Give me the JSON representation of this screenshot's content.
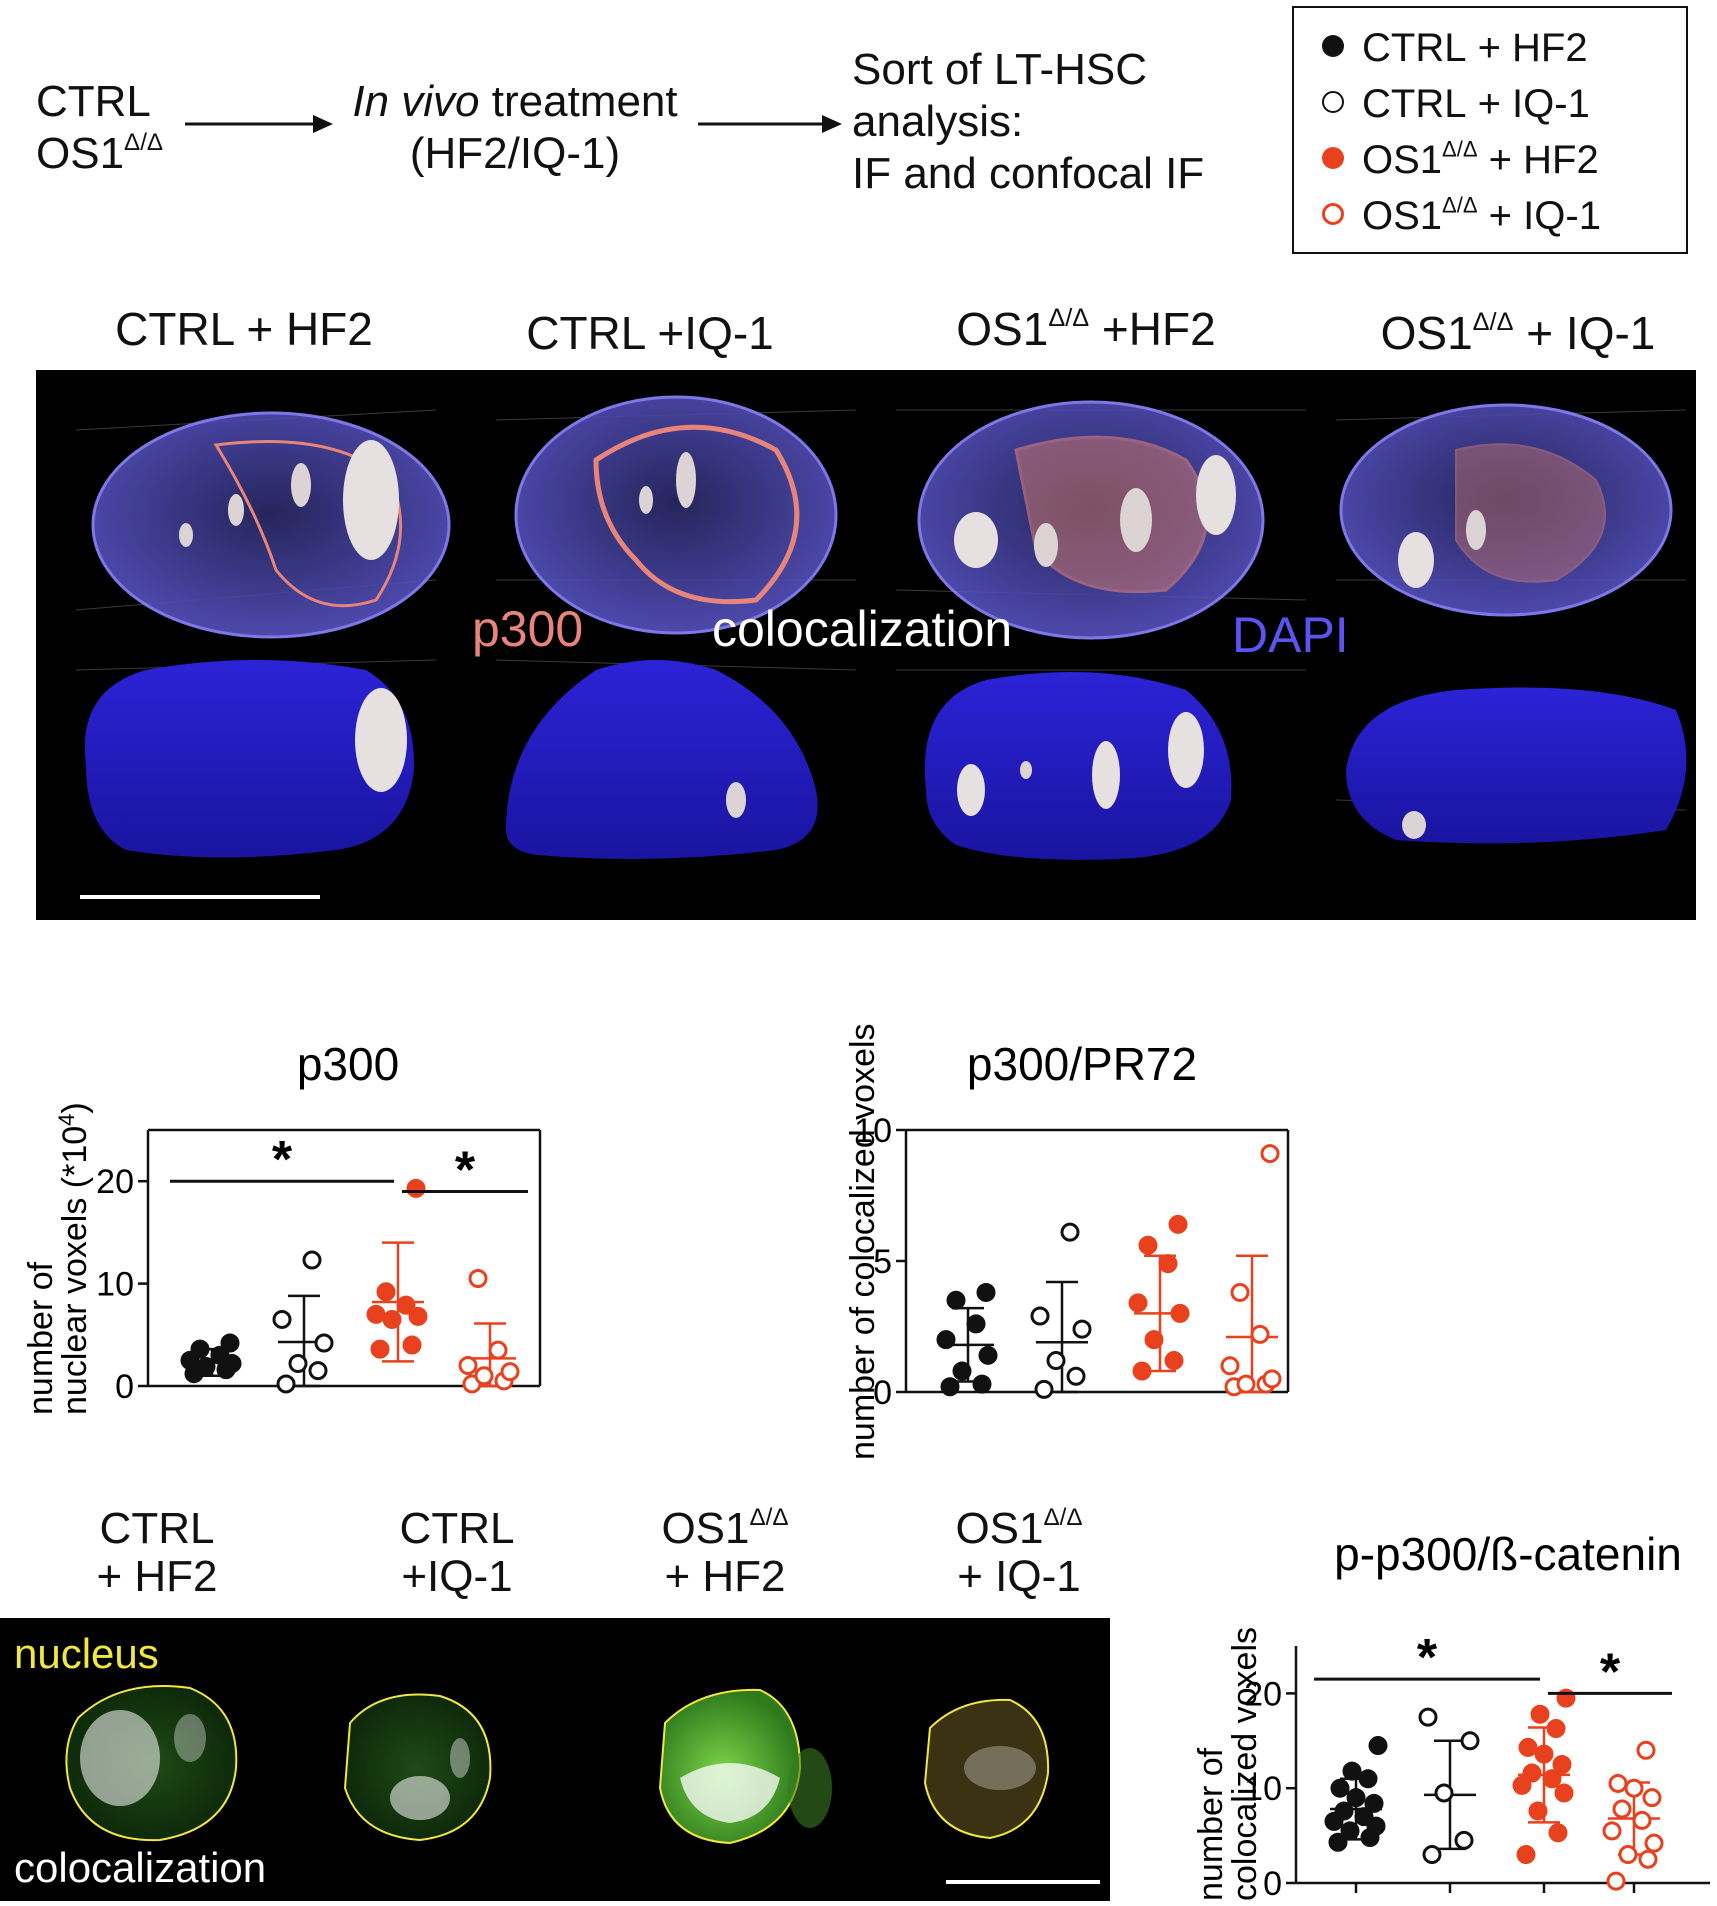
{
  "workflow": {
    "group_line1": "CTRL",
    "group_line2": "OS1",
    "group_line2_sup": "Δ/Δ",
    "treatment_italic": "In vivo",
    "treatment_rest": " treatment",
    "treatment_line2": "(HF2/IQ-1)",
    "analysis_line1": "Sort of LT-HSC",
    "analysis_line2": "analysis:",
    "analysis_line3": "IF and confocal IF"
  },
  "legend": {
    "items": [
      {
        "prefix": "CTRL",
        "sup": "",
        "suffix": " + HF2",
        "marker": "filled",
        "color": "#111111"
      },
      {
        "prefix": "CTRL",
        "sup": "",
        "suffix": " + IQ-1",
        "marker": "open",
        "color": "#111111"
      },
      {
        "prefix": "OS1",
        "sup": "Δ/Δ",
        "suffix": " + HF2",
        "marker": "filled",
        "color": "#e8411e"
      },
      {
        "prefix": "OS1",
        "sup": "Δ/Δ",
        "suffix": " + IQ-1",
        "marker": "open",
        "color": "#e8411e"
      }
    ]
  },
  "panel3d": {
    "col_titles": [
      {
        "prefix": "CTRL + HF2",
        "sup": "",
        "suffix": ""
      },
      {
        "prefix": "CTRL +IQ-1",
        "sup": "",
        "suffix": ""
      },
      {
        "prefix": "OS1",
        "sup": "Δ/Δ",
        "suffix": " +HF2"
      },
      {
        "prefix": "OS1",
        "sup": "Δ/Δ",
        "suffix": " + IQ-1"
      }
    ],
    "label_p300": "p300",
    "label_coloc": "colocalization",
    "label_dapi": "DAPI",
    "color_p300": "#e8857a",
    "color_dapi": "#5b54f2",
    "color_coloc": "#ffffff"
  },
  "panel2d": {
    "col_titles": [
      {
        "line1": "CTRL",
        "sup": "",
        "line2": "+ HF2"
      },
      {
        "line1": "CTRL",
        "sup": "",
        "line2": "+IQ-1"
      },
      {
        "line1": "OS1",
        "sup": "Δ/Δ",
        "line2": "+ HF2"
      },
      {
        "line1": "OS1",
        "sup": "Δ/Δ",
        "line2": "+ IQ-1"
      }
    ],
    "label_nucleus": "nucleus",
    "label_coloc": "colocalization",
    "color_nucleus": "#f2e640"
  },
  "chart_data": [
    {
      "type": "scatter",
      "title": "p300",
      "ylabel_line1": "number of",
      "ylabel_line2": "nuclear voxels (*10",
      "ylabel_sup": "4",
      "ylabel_end": ")",
      "ylim": [
        0,
        25
      ],
      "yticks": [
        0,
        10,
        20
      ],
      "groups": [
        {
          "group": "CTRL + HF2",
          "marker": "filled",
          "color": "#111111",
          "mean": 2.3,
          "sd": 1.3,
          "values": [
            1.2,
            1.6,
            1.9,
            2.2,
            2.5,
            3.0,
            3.6,
            4.2
          ]
        },
        {
          "group": "CTRL + IQ-1",
          "marker": "open",
          "color": "#111111",
          "mean": 4.3,
          "sd": 4.5,
          "values": [
            0.2,
            1.5,
            2.2,
            4.2,
            6.5,
            12.3
          ]
        },
        {
          "group": "OS1 + HF2",
          "marker": "filled",
          "color": "#e8411e",
          "mean": 8.2,
          "sd": 5.8,
          "values": [
            3.6,
            4.0,
            6.5,
            6.8,
            7.0,
            7.9,
            9.2,
            19.3
          ]
        },
        {
          "group": "OS1 + IQ-1",
          "marker": "open",
          "color": "#e8411e",
          "mean": 2.7,
          "sd": 3.4,
          "values": [
            0.2,
            0.5,
            1.0,
            1.4,
            2.0,
            3.5,
            10.5
          ]
        }
      ],
      "significance": [
        {
          "from": 0,
          "to": 2,
          "label": "*"
        },
        {
          "from": 2,
          "to": 3,
          "label": "*"
        }
      ]
    },
    {
      "type": "scatter",
      "title": "p300/PR72",
      "ylabel": "number of colocalized voxels",
      "ylim": [
        0,
        10
      ],
      "yticks": [
        0,
        5,
        10
      ],
      "groups": [
        {
          "group": "CTRL + HF2",
          "marker": "filled",
          "color": "#111111",
          "mean": 1.8,
          "sd": 1.4,
          "values": [
            0.2,
            0.3,
            0.8,
            1.4,
            2.0,
            2.6,
            3.5,
            3.8
          ]
        },
        {
          "group": "CTRL + IQ-1",
          "marker": "open",
          "color": "#111111",
          "mean": 1.9,
          "sd": 2.3,
          "values": [
            0.1,
            0.6,
            1.2,
            2.4,
            2.9,
            6.1
          ]
        },
        {
          "group": "OS1 + HF2",
          "marker": "filled",
          "color": "#e8411e",
          "mean": 3.0,
          "sd": 2.2,
          "values": [
            0.8,
            1.2,
            2.0,
            3.0,
            3.4,
            4.9,
            5.6,
            6.4
          ]
        },
        {
          "group": "OS1 + IQ-1",
          "marker": "open",
          "color": "#e8411e",
          "mean": 2.1,
          "sd": 3.1,
          "values": [
            0.2,
            0.3,
            0.3,
            0.5,
            1.0,
            2.2,
            3.8,
            9.1
          ]
        }
      ],
      "significance": []
    },
    {
      "type": "scatter",
      "title": "p-p300/ß-catenin",
      "ylabel_line1": "number of",
      "ylabel_line2": "colocalized voxels",
      "ylim": [
        0,
        25
      ],
      "yticks": [
        0,
        10,
        20
      ],
      "groups": [
        {
          "group": "CTRL + HF2",
          "marker": "filled",
          "color": "#111111",
          "mean": 7.8,
          "sd": 3.2,
          "values": [
            4.3,
            4.8,
            5.5,
            6.0,
            6.5,
            7.0,
            7.6,
            8.4,
            9.0,
            10.0,
            11.0,
            11.8,
            14.5
          ]
        },
        {
          "group": "CTRL + IQ-1",
          "marker": "open",
          "color": "#111111",
          "mean": 9.3,
          "sd": 5.7,
          "values": [
            3.0,
            4.5,
            9.5,
            15.0,
            17.5
          ]
        },
        {
          "group": "OS1 + HF2",
          "marker": "filled",
          "color": "#e8411e",
          "mean": 11.4,
          "sd": 5.0,
          "values": [
            3.0,
            5.3,
            7.6,
            9.5,
            10.3,
            11.0,
            11.6,
            12.5,
            13.6,
            14.3,
            16.3,
            17.8,
            19.5
          ]
        },
        {
          "group": "OS1 + IQ-1",
          "marker": "open",
          "color": "#e8411e",
          "mean": 6.8,
          "sd": 3.8,
          "values": [
            0.2,
            2.5,
            3.0,
            4.2,
            5.5,
            6.6,
            7.8,
            9.0,
            10.0,
            10.5,
            14.0
          ]
        }
      ],
      "significance": [
        {
          "from": 0,
          "to": 2,
          "label": "*"
        },
        {
          "from": 2,
          "to": 3,
          "label": "*"
        }
      ]
    }
  ]
}
